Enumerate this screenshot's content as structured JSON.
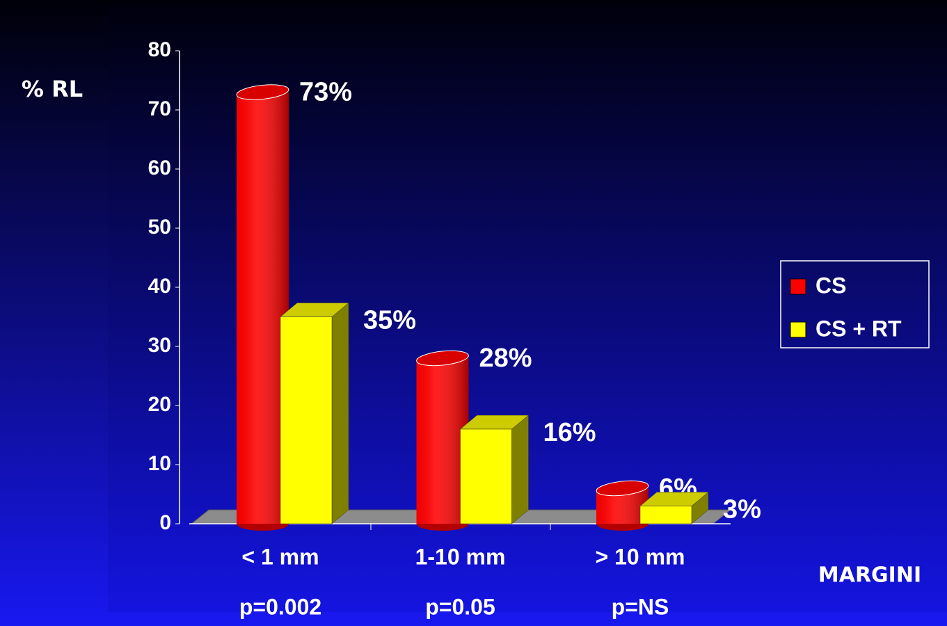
{
  "chart_data": {
    "type": "bar3d",
    "y_label": "% RL",
    "x_label": "MARGINI",
    "categories": [
      "< 1 mm",
      "1-10 mm",
      "> 10 mm"
    ],
    "annotations": [
      "p=0.002",
      "p=0.05",
      "p=NS"
    ],
    "series": [
      {
        "name": "CS",
        "color": "#ff0000",
        "shape": "cylinder",
        "values": [
          73,
          28,
          6
        ],
        "value_labels": [
          "73%",
          "28%",
          "6%"
        ]
      },
      {
        "name": "CS + RT",
        "color": "#ffff00",
        "shape": "box",
        "values": [
          35,
          16,
          3
        ],
        "value_labels": [
          "35%",
          "16%",
          "3%"
        ]
      }
    ],
    "ylim": [
      0,
      80
    ],
    "yticks": [
      0,
      10,
      20,
      30,
      40,
      50,
      60,
      70,
      80
    ],
    "legend": "right"
  }
}
